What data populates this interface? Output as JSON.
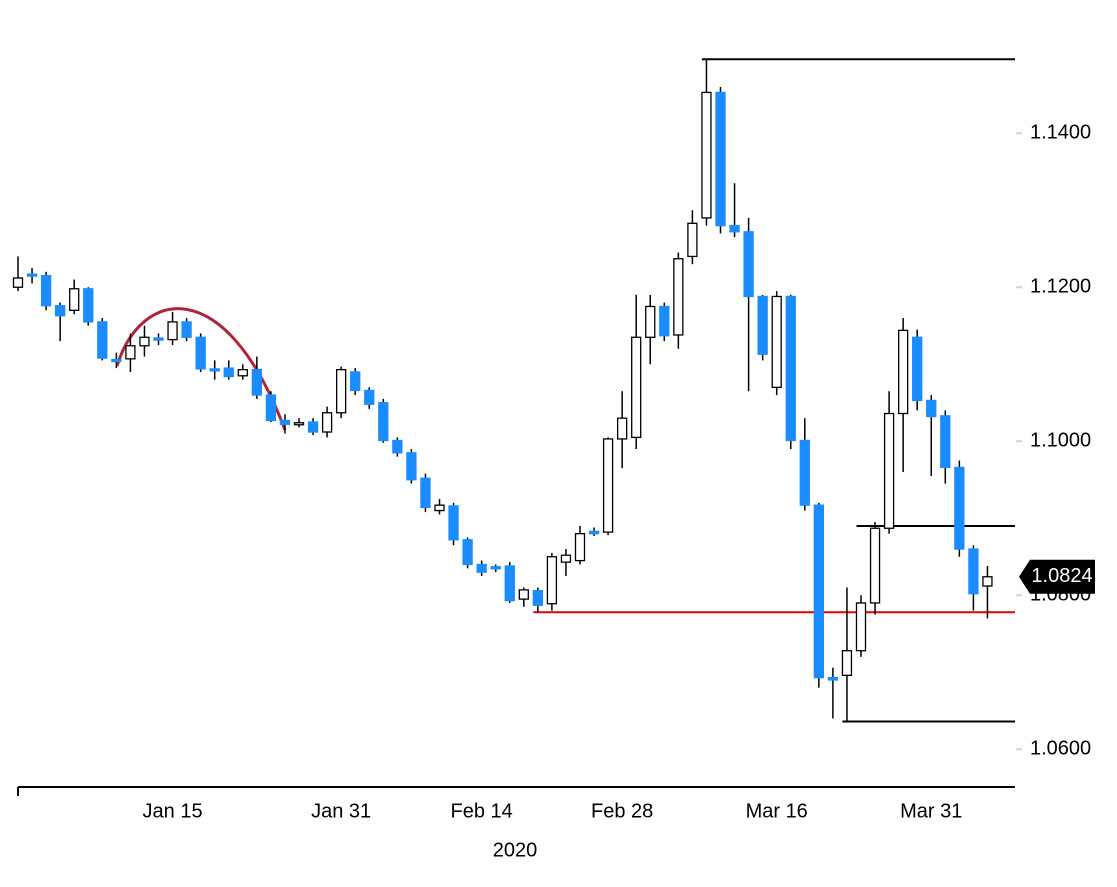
{
  "chart_data": {
    "type": "candlestick",
    "categories": [
      null,
      null,
      null,
      null,
      null,
      null,
      null,
      null,
      null,
      null,
      null,
      "Jan 15",
      null,
      null,
      null,
      null,
      null,
      null,
      null,
      null,
      null,
      null,
      null,
      "Jan 31",
      null,
      null,
      null,
      null,
      null,
      null,
      null,
      null,
      null,
      "Feb 14",
      null,
      null,
      null,
      null,
      null,
      null,
      null,
      null,
      null,
      "Feb 28",
      null,
      null,
      null,
      null,
      null,
      null,
      null,
      null,
      null,
      null,
      "Mar 16",
      null,
      null,
      null,
      null,
      null,
      null,
      null,
      null,
      null,
      null,
      "Mar 31",
      null,
      null,
      null,
      null
    ],
    "xlabel": "2020",
    "open": [
      1.12,
      1.1217,
      1.1215,
      1.1176,
      1.117,
      1.1198,
      1.1155,
      1.1106,
      1.1107,
      1.1124,
      1.1134,
      1.1132,
      1.1155,
      1.1135,
      1.1094,
      1.1095,
      1.1085,
      1.1093,
      1.106,
      1.1027,
      1.1024,
      1.1025,
      1.1012,
      1.1037,
      1.109,
      1.1066,
      1.105,
      1.1001,
      1.0985,
      1.0952,
      1.091,
      1.0916,
      1.0872,
      1.084,
      1.0837,
      1.0838,
      1.0795,
      1.0806,
      1.0789,
      1.0843,
      1.0845,
      1.0883,
      1.0882,
      1.1003,
      1.1005,
      1.1135,
      1.1175,
      1.1138,
      1.124,
      1.129,
      1.1453,
      1.128,
      1.1272,
      1.1188,
      1.107,
      1.1188,
      1.1001,
      1.0917,
      1.0693,
      1.0696,
      1.0728,
      1.079,
      1.0887,
      1.1036,
      1.1135,
      1.1053,
      1.1033,
      1.0966,
      1.086,
      1.0812
    ],
    "high": [
      1.124,
      1.1225,
      1.122,
      1.118,
      1.121,
      1.12,
      1.116,
      1.1115,
      1.114,
      1.115,
      1.114,
      1.1168,
      1.116,
      1.114,
      1.1105,
      1.1105,
      1.11,
      1.111,
      1.1065,
      1.1035,
      1.103,
      1.103,
      1.1045,
      1.1097,
      1.1095,
      1.107,
      1.1055,
      1.1005,
      1.099,
      1.0958,
      1.0925,
      1.092,
      1.0875,
      1.0845,
      1.084,
      1.0843,
      1.081,
      1.081,
      1.0855,
      1.086,
      1.089,
      1.0888,
      1.1005,
      1.1065,
      1.119,
      1.119,
      1.118,
      1.1245,
      1.13,
      1.1496,
      1.146,
      1.1335,
      1.129,
      1.119,
      1.1195,
      1.119,
      1.103,
      1.092,
      1.0706,
      1.081,
      1.08,
      1.0895,
      1.1065,
      1.116,
      1.1145,
      1.106,
      1.104,
      1.0975,
      1.0865,
      1.0838
    ],
    "low": [
      1.1195,
      1.1205,
      1.117,
      1.113,
      1.1165,
      1.115,
      1.1105,
      1.1095,
      1.109,
      1.111,
      1.1125,
      1.1125,
      1.113,
      1.109,
      1.108,
      1.108,
      1.108,
      1.1055,
      1.1025,
      1.101,
      1.1018,
      1.1008,
      1.1005,
      1.103,
      1.106,
      1.1042,
      1.0998,
      1.098,
      1.0945,
      1.0908,
      1.0905,
      1.0865,
      1.0835,
      1.0825,
      1.083,
      1.079,
      1.0785,
      1.0778,
      1.078,
      1.0825,
      1.084,
      1.0877,
      1.0878,
      1.0965,
      1.099,
      1.11,
      1.113,
      1.112,
      1.123,
      1.128,
      1.127,
      1.1265,
      1.1065,
      1.1105,
      1.106,
      1.099,
      1.091,
      1.068,
      1.064,
      1.0636,
      1.072,
      1.0775,
      1.088,
      1.096,
      1.104,
      1.0955,
      1.0945,
      1.085,
      1.078,
      1.077
    ],
    "close": [
      1.1212,
      1.1216,
      1.1176,
      1.1163,
      1.1198,
      1.1155,
      1.1108,
      1.1105,
      1.1124,
      1.1135,
      1.1133,
      1.1155,
      1.1135,
      1.1094,
      1.1093,
      1.1084,
      1.1093,
      1.106,
      1.1027,
      1.1022,
      1.1024,
      1.1012,
      1.1037,
      1.1093,
      1.1066,
      1.1048,
      1.1001,
      1.0985,
      1.095,
      1.0914,
      1.0917,
      1.0872,
      1.084,
      1.083,
      1.0836,
      1.0793,
      1.0807,
      1.0787,
      1.085,
      1.0852,
      1.088,
      1.088,
      1.1003,
      1.103,
      1.1135,
      1.1175,
      1.1137,
      1.1237,
      1.1283,
      1.1453,
      1.128,
      1.1272,
      1.1188,
      1.1113,
      1.1188,
      1.1001,
      1.0917,
      1.0693,
      1.069,
      1.0728,
      1.079,
      1.0887,
      1.1036,
      1.1144,
      1.1053,
      1.1032,
      1.0966,
      1.086,
      1.0802,
      1.0824
    ],
    "up_color": "#ffffff",
    "down_color": "#1a8cff",
    "ylim": [
      1.0551,
      1.1573
    ],
    "yticks": [
      {
        "value": 1.06,
        "label": "1.0600"
      },
      {
        "value": 1.08,
        "label": "1.0800"
      },
      {
        "value": 1.1,
        "label": "1.1000"
      },
      {
        "value": 1.12,
        "label": "1.1200"
      },
      {
        "value": 1.14,
        "label": "1.1400"
      }
    ],
    "levels": [
      {
        "value": 1.1496,
        "start": 49,
        "color": "#000000"
      },
      {
        "value": 1.089,
        "start": 60,
        "color": "#000000"
      },
      {
        "value": 1.0636,
        "start": 59,
        "color": "#000000"
      },
      {
        "value": 1.0778,
        "start": 37,
        "color": "#e00000"
      }
    ],
    "last_price": 1.0824
  }
}
